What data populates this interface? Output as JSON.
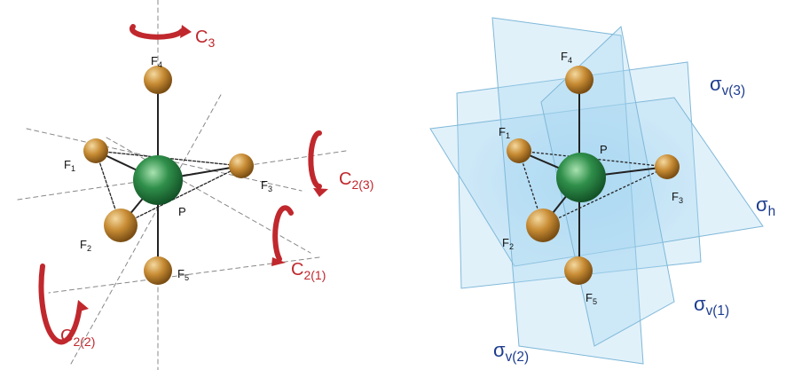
{
  "left_panel": {
    "atoms": [
      {
        "symbol": "P"
      },
      {
        "symbol": "F",
        "subscript": "1"
      },
      {
        "symbol": "F",
        "subscript": "2"
      },
      {
        "symbol": "F",
        "subscript": "3"
      },
      {
        "symbol": "F",
        "subscript": "4"
      },
      {
        "symbol": "F",
        "subscript": "5"
      }
    ],
    "axes": [
      {
        "symbol": "C",
        "subscript": "3"
      },
      {
        "symbol": "C",
        "subscript": "2(3)"
      },
      {
        "symbol": "C",
        "subscript": "2(1)"
      },
      {
        "symbol": "C",
        "subscript": "2(2)"
      }
    ]
  },
  "right_panel": {
    "atoms": [
      {
        "symbol": "P"
      },
      {
        "symbol": "F",
        "subscript": "1"
      },
      {
        "symbol": "F",
        "subscript": "2"
      },
      {
        "symbol": "F",
        "subscript": "3"
      },
      {
        "symbol": "F",
        "subscript": "4"
      },
      {
        "symbol": "F",
        "subscript": "5"
      }
    ],
    "planes": [
      {
        "symbol": "σ",
        "subscript": "v(3)"
      },
      {
        "symbol": "σ",
        "subscript": "h"
      },
      {
        "symbol": "σ",
        "subscript": "v(1)"
      },
      {
        "symbol": "σ",
        "subscript": "v(2)"
      }
    ]
  }
}
